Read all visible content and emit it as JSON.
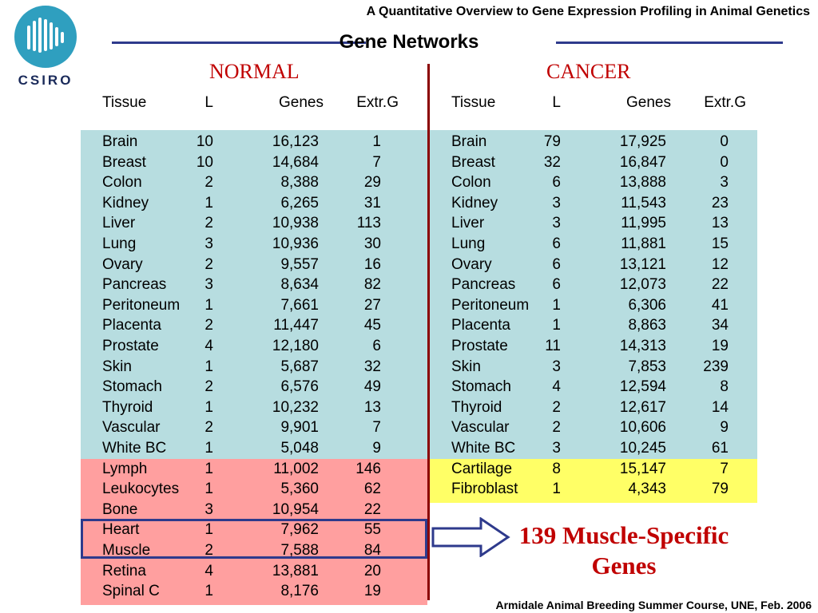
{
  "header": {
    "logo_text": "CSIRO",
    "top_title": "A Quantitative Overview to Gene Expression Profiling in Animal Genetics",
    "section_title": "Gene Networks"
  },
  "colors": {
    "rule": "#2e3a8c",
    "blue_bg": "#b7dde0",
    "red_bg": "#ff9f9f",
    "yellow_bg": "#ffff66",
    "heading_red": "#c00000"
  },
  "normal": {
    "heading": "NORMAL",
    "columns": [
      "Tissue",
      "L",
      "Genes",
      "Extr.G"
    ],
    "rows": [
      {
        "group": "blue",
        "tissue": "Brain",
        "l": "10",
        "genes": "16,123",
        "extr": "1"
      },
      {
        "group": "blue",
        "tissue": "Breast",
        "l": "10",
        "genes": "14,684",
        "extr": "7"
      },
      {
        "group": "blue",
        "tissue": "Colon",
        "l": "2",
        "genes": "8,388",
        "extr": "29"
      },
      {
        "group": "blue",
        "tissue": "Kidney",
        "l": "1",
        "genes": "6,265",
        "extr": "31"
      },
      {
        "group": "blue",
        "tissue": "Liver",
        "l": "2",
        "genes": "10,938",
        "extr": "113"
      },
      {
        "group": "blue",
        "tissue": "Lung",
        "l": "3",
        "genes": "10,936",
        "extr": "30"
      },
      {
        "group": "blue",
        "tissue": "Ovary",
        "l": "2",
        "genes": "9,557",
        "extr": "16"
      },
      {
        "group": "blue",
        "tissue": "Pancreas",
        "l": "3",
        "genes": "8,634",
        "extr": "82"
      },
      {
        "group": "blue",
        "tissue": "Peritoneum",
        "l": "1",
        "genes": "7,661",
        "extr": "27"
      },
      {
        "group": "blue",
        "tissue": "Placenta",
        "l": "2",
        "genes": "11,447",
        "extr": "45"
      },
      {
        "group": "blue",
        "tissue": "Prostate",
        "l": "4",
        "genes": "12,180",
        "extr": "6"
      },
      {
        "group": "blue",
        "tissue": "Skin",
        "l": "1",
        "genes": "5,687",
        "extr": "32"
      },
      {
        "group": "blue",
        "tissue": "Stomach",
        "l": "2",
        "genes": "6,576",
        "extr": "49"
      },
      {
        "group": "blue",
        "tissue": "Thyroid",
        "l": "1",
        "genes": "10,232",
        "extr": "13"
      },
      {
        "group": "blue",
        "tissue": "Vascular",
        "l": "2",
        "genes": "9,901",
        "extr": "7"
      },
      {
        "group": "blue",
        "tissue": "White BC",
        "l": "1",
        "genes": "5,048",
        "extr": "9"
      },
      {
        "group": "red",
        "tissue": "Lymph",
        "l": "1",
        "genes": "11,002",
        "extr": "146"
      },
      {
        "group": "red",
        "tissue": "Leukocytes",
        "l": "1",
        "genes": "5,360",
        "extr": "62"
      },
      {
        "group": "red",
        "tissue": "Bone",
        "l": "3",
        "genes": "10,954",
        "extr": "22"
      },
      {
        "group": "red",
        "tissue": "Heart",
        "l": "1",
        "genes": "7,962",
        "extr": "55"
      },
      {
        "group": "red",
        "tissue": "Muscle",
        "l": "2",
        "genes": "7,588",
        "extr": "84"
      },
      {
        "group": "red",
        "tissue": "Retina",
        "l": "4",
        "genes": "13,881",
        "extr": "20"
      },
      {
        "group": "red",
        "tissue": "Spinal C",
        "l": "1",
        "genes": "8,176",
        "extr": "19"
      }
    ]
  },
  "cancer": {
    "heading": "CANCER",
    "columns": [
      "Tissue",
      "L",
      "Genes",
      "Extr.G"
    ],
    "rows": [
      {
        "group": "blue",
        "tissue": "Brain",
        "l": "79",
        "genes": "17,925",
        "extr": "0"
      },
      {
        "group": "blue",
        "tissue": "Breast",
        "l": "32",
        "genes": "16,847",
        "extr": "0"
      },
      {
        "group": "blue",
        "tissue": "Colon",
        "l": "6",
        "genes": "13,888",
        "extr": "3"
      },
      {
        "group": "blue",
        "tissue": "Kidney",
        "l": "3",
        "genes": "11,543",
        "extr": "23"
      },
      {
        "group": "blue",
        "tissue": "Liver",
        "l": "3",
        "genes": "11,995",
        "extr": "13"
      },
      {
        "group": "blue",
        "tissue": "Lung",
        "l": "6",
        "genes": "11,881",
        "extr": "15"
      },
      {
        "group": "blue",
        "tissue": "Ovary",
        "l": "6",
        "genes": "13,121",
        "extr": "12"
      },
      {
        "group": "blue",
        "tissue": "Pancreas",
        "l": "6",
        "genes": "12,073",
        "extr": "22"
      },
      {
        "group": "blue",
        "tissue": "Peritoneum",
        "l": "1",
        "genes": "6,306",
        "extr": "41"
      },
      {
        "group": "blue",
        "tissue": "Placenta",
        "l": "1",
        "genes": "8,863",
        "extr": "34"
      },
      {
        "group": "blue",
        "tissue": "Prostate",
        "l": "11",
        "genes": "14,313",
        "extr": "19"
      },
      {
        "group": "blue",
        "tissue": "Skin",
        "l": "3",
        "genes": "7,853",
        "extr": "239"
      },
      {
        "group": "blue",
        "tissue": "Stomach",
        "l": "4",
        "genes": "12,594",
        "extr": "8"
      },
      {
        "group": "blue",
        "tissue": "Thyroid",
        "l": "2",
        "genes": "12,617",
        "extr": "14"
      },
      {
        "group": "blue",
        "tissue": "Vascular",
        "l": "2",
        "genes": "10,606",
        "extr": "9"
      },
      {
        "group": "blue",
        "tissue": "White BC",
        "l": "3",
        "genes": "10,245",
        "extr": "61"
      },
      {
        "group": "yellow",
        "tissue": "Cartilage",
        "l": "8",
        "genes": "15,147",
        "extr": "7"
      },
      {
        "group": "yellow",
        "tissue": "Fibroblast",
        "l": "1",
        "genes": "4,343",
        "extr": "79"
      }
    ]
  },
  "callout": {
    "line1": "139 Muscle-Specific",
    "line2": "Genes"
  },
  "footer": "Armidale Animal Breeding Summer Course, UNE, Feb. 2006"
}
